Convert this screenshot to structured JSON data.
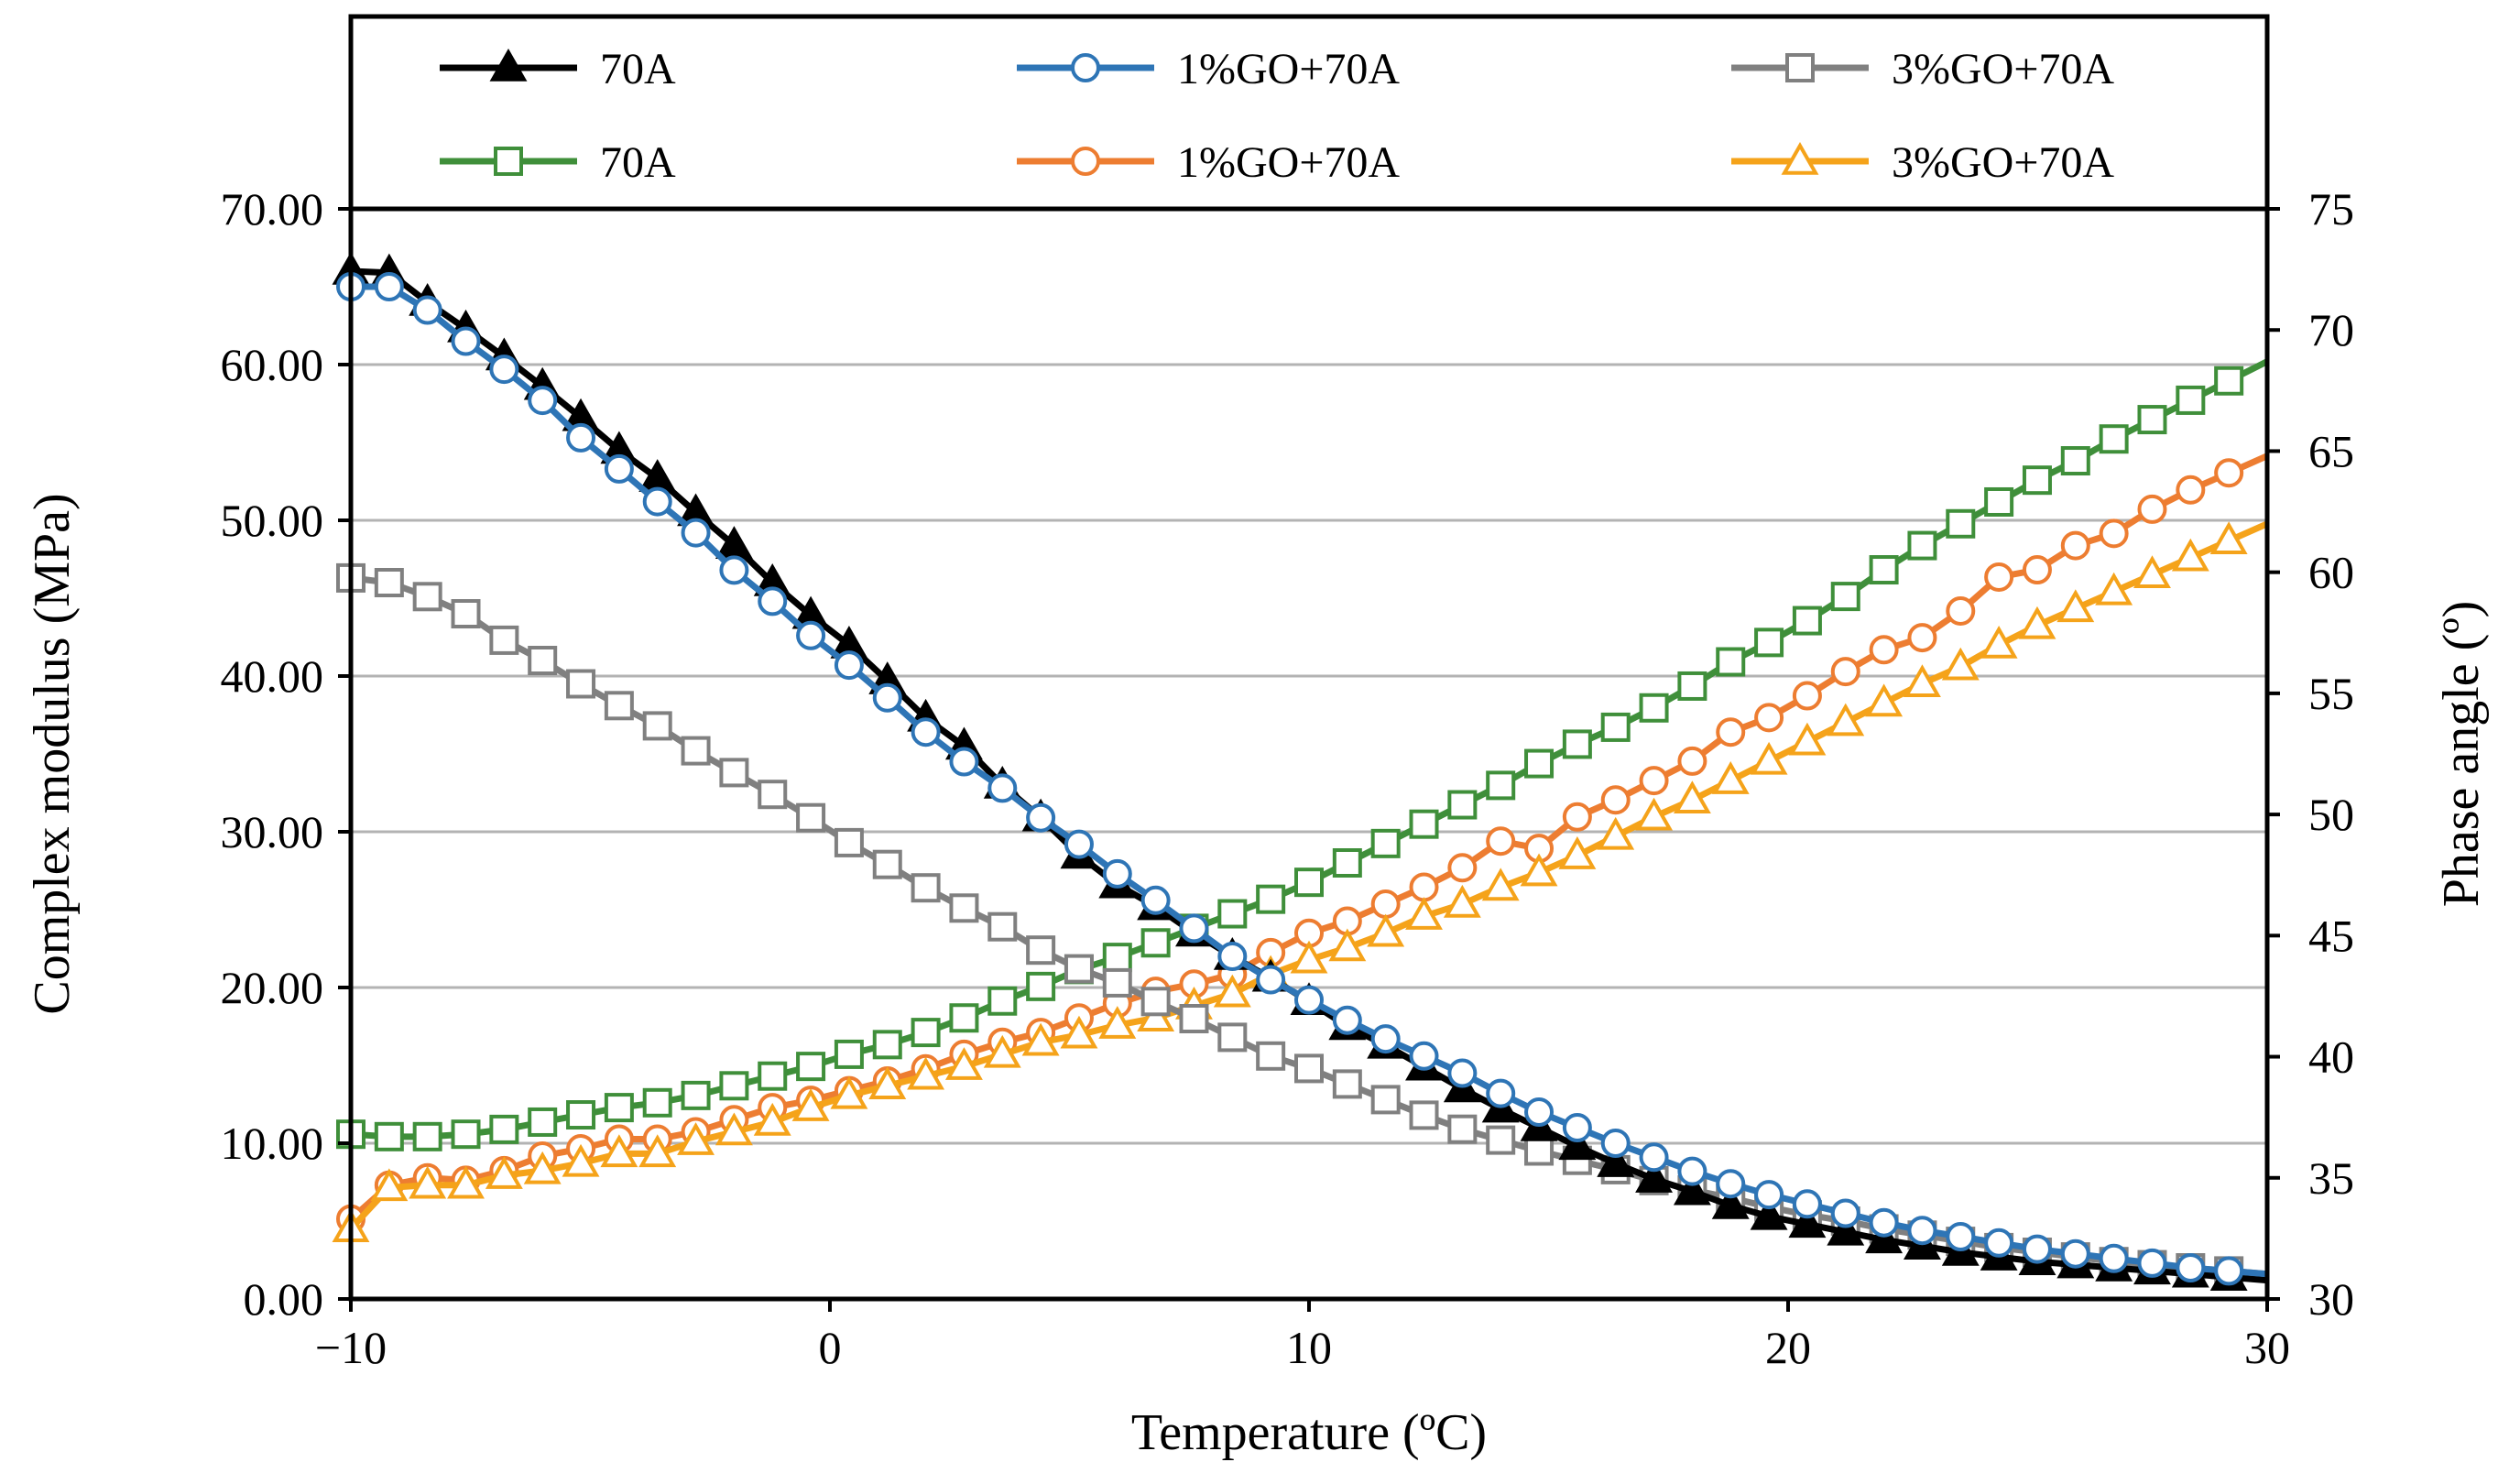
{
  "chart_data": {
    "type": "line",
    "title": "",
    "xlabel": "Temperature (ºC)",
    "ylabel_left": "Complex modulus (MPa)",
    "ylabel_right": "Phase angle (º)",
    "xlim": [
      -10,
      30
    ],
    "ylim_left": [
      0,
      70
    ],
    "ylim_right": [
      30,
      75
    ],
    "x_ticks": [
      "−10",
      "0",
      "10",
      "20",
      "30"
    ],
    "y_left_ticks": [
      "0.00",
      "10.00",
      "20.00",
      "30.00",
      "40.00",
      "50.00",
      "60.00",
      "70.00"
    ],
    "y_right_ticks": [
      "30",
      "35",
      "40",
      "45",
      "50",
      "55",
      "60",
      "65",
      "70",
      "75"
    ],
    "grid": "horizontal",
    "legend_position": "top",
    "x": [
      -10,
      -9.2,
      -8.4,
      -7.6,
      -6.8,
      -6,
      -5.2,
      -4.4,
      -3.6,
      -2.8,
      -2,
      -1.2,
      -0.4,
      0.4,
      1.2,
      2,
      2.8,
      3.6,
      4.4,
      5.2,
      6,
      6.8,
      7.6,
      8.4,
      9.2,
      10,
      10.8,
      11.6,
      12.4,
      13.2,
      14,
      14.8,
      15.6,
      16.4,
      17.2,
      18,
      18.8,
      19.6,
      20.4,
      21.2,
      22,
      22.8,
      23.6,
      24.4,
      25.2,
      26,
      26.8,
      27.6,
      28.4,
      29.2
    ],
    "series": [
      {
        "name": "70A",
        "axis": "left",
        "marker": "triangle-filled",
        "color": "#000000",
        "values": [
          66.0,
          65.9,
          64.0,
          62.3,
          60.5,
          58.6,
          56.6,
          54.5,
          52.7,
          50.5,
          48.4,
          46.0,
          43.9,
          42.0,
          39.7,
          37.3,
          35.5,
          33.0,
          30.9,
          28.5,
          26.6,
          25.2,
          23.5,
          22.0,
          20.6,
          19.1,
          17.5,
          16.3,
          14.9,
          13.5,
          12.2,
          11.0,
          9.8,
          8.7,
          7.7,
          6.9,
          6.0,
          5.3,
          4.8,
          4.3,
          3.8,
          3.4,
          3.0,
          2.7,
          2.4,
          2.2,
          2.0,
          1.8,
          1.6,
          1.4
        ]
      },
      {
        "name": "1%GO+70A",
        "axis": "left",
        "marker": "circle",
        "color": "#2e75b6",
        "values": [
          65.0,
          65.0,
          63.5,
          61.5,
          59.7,
          57.7,
          55.3,
          53.3,
          51.2,
          49.2,
          46.8,
          44.8,
          42.6,
          40.7,
          38.6,
          36.4,
          34.5,
          32.8,
          30.9,
          29.2,
          27.3,
          25.6,
          23.8,
          22.0,
          20.5,
          19.2,
          17.9,
          16.7,
          15.6,
          14.5,
          13.2,
          12.0,
          11.0,
          10.0,
          9.1,
          8.2,
          7.4,
          6.7,
          6.1,
          5.5,
          4.9,
          4.4,
          4.0,
          3.6,
          3.2,
          2.9,
          2.6,
          2.3,
          2.0,
          1.8
        ]
      },
      {
        "name": "3%GO+70A",
        "axis": "left",
        "marker": "square",
        "color": "#808080",
        "values": [
          46.3,
          46.0,
          45.1,
          44.0,
          42.3,
          41.0,
          39.5,
          38.1,
          36.8,
          35.2,
          33.8,
          32.4,
          30.9,
          29.3,
          27.9,
          26.4,
          25.1,
          23.9,
          22.4,
          21.2,
          20.3,
          19.1,
          18.0,
          16.8,
          15.6,
          14.8,
          13.8,
          12.8,
          11.8,
          10.9,
          10.2,
          9.5,
          8.9,
          8.3,
          7.6,
          7.0,
          6.5,
          5.9,
          5.4,
          5.0,
          4.5,
          4.1,
          3.7,
          3.3,
          3.0,
          2.7,
          2.4,
          2.2,
          2.0,
          1.8
        ]
      },
      {
        "name": "70A",
        "axis": "right",
        "marker": "square",
        "color": "#3f8f3a",
        "values": [
          36.8,
          36.7,
          36.7,
          36.8,
          37.0,
          37.3,
          37.6,
          37.9,
          38.1,
          38.4,
          38.8,
          39.2,
          39.6,
          40.1,
          40.5,
          41.0,
          41.6,
          42.3,
          42.9,
          43.6,
          44.1,
          44.7,
          45.3,
          45.9,
          46.5,
          47.2,
          48.0,
          48.8,
          49.6,
          50.4,
          51.2,
          52.1,
          52.9,
          53.6,
          54.4,
          55.3,
          56.3,
          57.1,
          58.0,
          59.0,
          60.1,
          61.1,
          62.0,
          62.9,
          63.8,
          64.6,
          65.5,
          66.3,
          67.1,
          67.9
        ]
      },
      {
        "name": "1%GO+70A",
        "axis": "right",
        "marker": "circle",
        "color": "#ed7d31",
        "values": [
          33.3,
          34.7,
          35.0,
          34.9,
          35.3,
          35.9,
          36.2,
          36.6,
          36.6,
          36.9,
          37.4,
          37.9,
          38.2,
          38.6,
          39.0,
          39.5,
          40.1,
          40.6,
          41.0,
          41.6,
          42.2,
          42.7,
          43.0,
          43.4,
          44.3,
          45.1,
          45.6,
          46.3,
          47.0,
          47.8,
          48.9,
          48.6,
          49.9,
          50.6,
          51.4,
          52.2,
          53.4,
          54.0,
          54.9,
          55.9,
          56.8,
          57.3,
          58.4,
          59.8,
          60.1,
          61.1,
          61.6,
          62.6,
          63.4,
          64.1
        ]
      },
      {
        "name": "3%GO+70A",
        "axis": "right",
        "marker": "triangle",
        "color": "#f5a31a",
        "values": [
          32.9,
          34.6,
          34.7,
          34.7,
          35.1,
          35.3,
          35.6,
          36.0,
          36.0,
          36.5,
          36.9,
          37.3,
          37.9,
          38.4,
          38.8,
          39.2,
          39.6,
          40.1,
          40.6,
          40.9,
          41.3,
          41.6,
          42.1,
          42.6,
          43.4,
          44.0,
          44.5,
          45.1,
          45.8,
          46.3,
          47.0,
          47.6,
          48.3,
          49.1,
          49.9,
          50.6,
          51.4,
          52.2,
          53.0,
          53.8,
          54.6,
          55.4,
          56.1,
          57.0,
          57.8,
          58.5,
          59.2,
          59.9,
          60.6,
          61.3
        ]
      }
    ]
  }
}
